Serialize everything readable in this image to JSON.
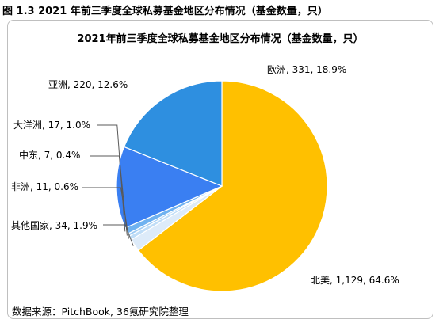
{
  "figure": {
    "caption": "图 1.3 2021 年前三季度全球私募基金地区分布情况（基金数量，只）"
  },
  "source_note": "数据来源：PitchBook, 36氪研究院整理",
  "colors": {
    "north_america": "#FFC000",
    "europe": "#2E8FE0",
    "asia": "#3A7FF2",
    "oceania": "#6FB2F0",
    "middle_east": "#9FCBF3",
    "africa": "#BFDDF7",
    "others": "#DDEBF9",
    "leader_line": "#595959"
  },
  "chart_data": {
    "type": "pie",
    "title": "2021年前三季度全球私募基金地区分布情况（基金数量，只）",
    "start_angle_deg": 270,
    "direction": "clockwise",
    "legend": "none",
    "slices": [
      {
        "name": "北美",
        "value": 1129,
        "percent": "64.6%",
        "label": "北美, 1,129, 64.6%",
        "color": "#FFC000"
      },
      {
        "name": "其他国家",
        "value": 34,
        "percent": "1.9%",
        "label": "其他国家, 34, 1.9%",
        "color": "#DDEBF9"
      },
      {
        "name": "非洲",
        "value": 11,
        "percent": "0.6%",
        "label": "非洲, 11, 0.6%",
        "color": "#BFDDF7"
      },
      {
        "name": "中东",
        "value": 7,
        "percent": "0.4%",
        "label": "中东, 7, 0.4%",
        "color": "#9FCBF3"
      },
      {
        "name": "大洋洲",
        "value": 17,
        "percent": "1.0%",
        "label": "大洋洲, 17, 1.0%",
        "color": "#6FB2F0"
      },
      {
        "name": "亚洲",
        "value": 220,
        "percent": "12.6%",
        "label": "亚洲, 220, 12.6%",
        "color": "#3A7FF2"
      },
      {
        "name": "欧洲",
        "value": 331,
        "percent": "18.9%",
        "label": "欧洲, 331, 18.9%",
        "color": "#2E8FE0"
      }
    ]
  }
}
